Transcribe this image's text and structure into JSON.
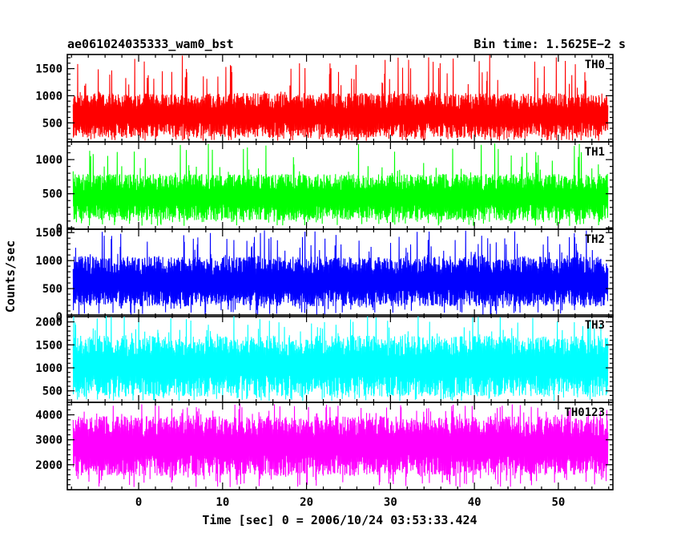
{
  "header": {
    "left": "ae061024035333_wam0_bst",
    "right": "Bin time: 1.5625E−2 s"
  },
  "chart_data": {
    "type": "line",
    "xlabel": "Time [sec] 0 = 2006/10/24 03:53:33.424",
    "ylabel": "Counts/sec",
    "xlim": [
      -8.5,
      56.5
    ],
    "x_ticks": [
      0,
      10,
      20,
      30,
      40,
      50
    ],
    "x_data_range": [
      -7.8,
      55.9
    ],
    "series": [
      {
        "name": "TH0",
        "color": "#ff0000",
        "ylim": [
          150,
          1760
        ],
        "y_ticks": [
          500,
          1000,
          1500
        ],
        "median": 620,
        "band_low": 230,
        "band_high": 1050,
        "min": 170,
        "max": 1760
      },
      {
        "name": "TH1",
        "color": "#00ff00",
        "ylim": [
          -20,
          1260
        ],
        "y_ticks": [
          0,
          500,
          1000
        ],
        "median": 440,
        "band_low": 110,
        "band_high": 790,
        "min": 30,
        "max": 1240
      },
      {
        "name": "TH2",
        "color": "#0000ff",
        "ylim": [
          0,
          1560
        ],
        "y_ticks": [
          0,
          500,
          1000,
          1500
        ],
        "median": 610,
        "band_low": 180,
        "band_high": 1080,
        "min": 20,
        "max": 1540
      },
      {
        "name": "TH3",
        "color": "#00ffff",
        "ylim": [
          250,
          2150
        ],
        "y_ticks": [
          500,
          1000,
          1500,
          2000
        ],
        "median": 1050,
        "band_low": 380,
        "band_high": 1700,
        "min": 280,
        "max": 2150
      },
      {
        "name": "TH0123",
        "color": "#ff00ff",
        "ylim": [
          1000,
          4500
        ],
        "y_ticks": [
          2000,
          3000,
          4000
        ],
        "median": 2750,
        "band_low": 1550,
        "band_high": 3950,
        "min": 1100,
        "max": 4450
      }
    ]
  }
}
